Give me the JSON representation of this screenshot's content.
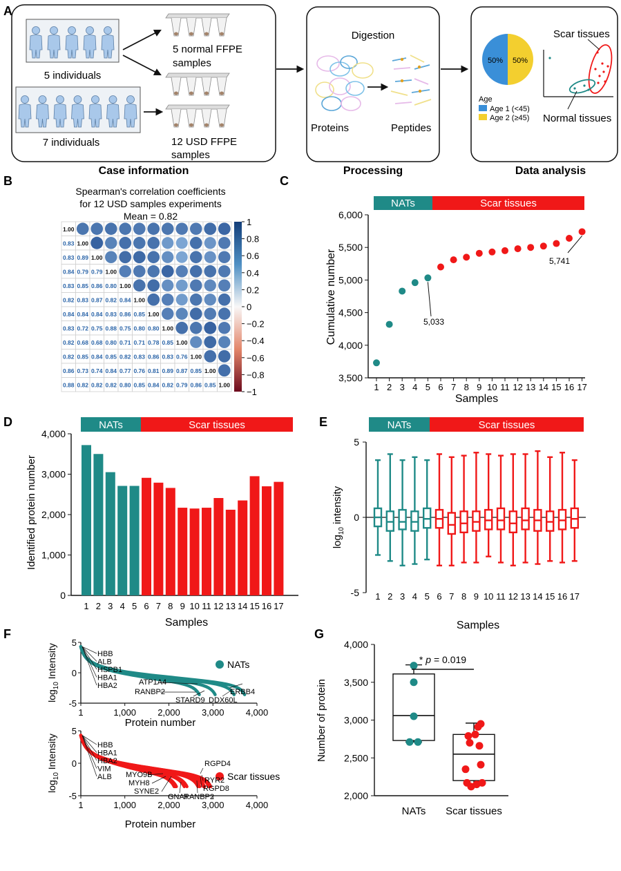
{
  "colors": {
    "teal": "#1f8a87",
    "red": "#f01818",
    "redDark": "#d61414",
    "blue": "#3a8fd8",
    "yellow": "#f3cf2f",
    "person": "#a9c8ea",
    "personStroke": "#5c7fa6"
  },
  "panels": {
    "A": "A",
    "B": "B",
    "C": "C",
    "D": "D",
    "E": "E",
    "F": "F",
    "G": "G"
  },
  "panelA": {
    "group1_label": "5 individuals",
    "group2_label": "7 individuals",
    "group1_count": 5,
    "group2_count": 7,
    "normal_samples_line1": "5 normal FFPE",
    "normal_samples_line2": "samples",
    "usd_samples_line1": "12 USD FFPE",
    "usd_samples_line2": "samples",
    "case_info": "Case information",
    "digestion": "Digestion",
    "proteins": "Proteins",
    "peptides": "Peptides",
    "processing": "Processing",
    "pie_left": "50%",
    "pie_right": "50%",
    "age_title": "Age",
    "age1": "Age 1 (<45)",
    "age2": "Age 2 (≥45)",
    "scar_tissues": "Scar tissues",
    "normal_tissues": "Normal tissues",
    "data_analysis": "Data analysis"
  },
  "panelB": {
    "title1": "Spearman's correlation coefficients",
    "title2": "for 12 USD samples experiments",
    "mean": "Mean = 0.82",
    "colorbar_ticks": [
      "1",
      "0.8",
      "0.6",
      "0.4",
      "0.2",
      "0",
      "−0.2",
      "−0.4",
      "−0.6",
      "−0.8",
      "−1"
    ],
    "matrix": [
      [
        "1.00"
      ],
      [
        "0.83",
        "1.00"
      ],
      [
        "0.83",
        "0.89",
        "1.00"
      ],
      [
        "0.84",
        "0.79",
        "0.79",
        "1.00"
      ],
      [
        "0.83",
        "0.85",
        "0.86",
        "0.80",
        "1.00"
      ],
      [
        "0.82",
        "0.83",
        "0.87",
        "0.82",
        "0.84",
        "1.00"
      ],
      [
        "0.84",
        "0.84",
        "0.84",
        "0.83",
        "0.86",
        "0.85",
        "1.00"
      ],
      [
        "0.83",
        "0.72",
        "0.75",
        "0.88",
        "0.75",
        "0.80",
        "0.80",
        "1.00"
      ],
      [
        "0.82",
        "0.68",
        "0.68",
        "0.80",
        "0.71",
        "0.71",
        "0.78",
        "0.85",
        "1.00"
      ],
      [
        "0.82",
        "0.85",
        "0.84",
        "0.85",
        "0.82",
        "0.83",
        "0.86",
        "0.83",
        "0.76",
        "1.00"
      ],
      [
        "0.86",
        "0.73",
        "0.74",
        "0.84",
        "0.77",
        "0.76",
        "0.81",
        "0.89",
        "0.87",
        "0.85",
        "1.00"
      ],
      [
        "0.88",
        "0.82",
        "0.82",
        "0.82",
        "0.80",
        "0.85",
        "0.84",
        "0.82",
        "0.79",
        "0.86",
        "0.85",
        "1.00"
      ]
    ]
  },
  "chart_data": [
    {
      "panel": "C",
      "type": "scatter",
      "title": "",
      "xlabel": "Samples",
      "ylabel": "Cumulative number",
      "bar_nats": "NATs",
      "bar_scar": "Scar tissues",
      "x": [
        "1",
        "2",
        "3",
        "4",
        "5",
        "6",
        "7",
        "8",
        "9",
        "10",
        "11",
        "12",
        "13",
        "14",
        "15",
        "16",
        "17"
      ],
      "values": [
        3730,
        4320,
        4830,
        4960,
        5033,
        5200,
        5310,
        5350,
        5410,
        5430,
        5450,
        5480,
        5500,
        5520,
        5560,
        5640,
        5741
      ],
      "group": [
        "NATs",
        "NATs",
        "NATs",
        "NATs",
        "NATs",
        "Scar",
        "Scar",
        "Scar",
        "Scar",
        "Scar",
        "Scar",
        "Scar",
        "Scar",
        "Scar",
        "Scar",
        "Scar",
        "Scar"
      ],
      "yticks": [
        "3,500",
        "4,000",
        "4,500",
        "5,000",
        "5,500",
        "6,000"
      ],
      "ylim": [
        3500,
        6000
      ],
      "annotations": [
        "5,033",
        "5,741"
      ]
    },
    {
      "panel": "D",
      "type": "bar",
      "xlabel": "Samples",
      "ylabel": "Identified protein number",
      "bar_nats": "NATs",
      "bar_scar": "Scar tissues",
      "categories": [
        "1",
        "2",
        "3",
        "4",
        "5",
        "6",
        "7",
        "8",
        "9",
        "10",
        "11",
        "12",
        "13",
        "14",
        "15",
        "16",
        "17"
      ],
      "values": [
        3720,
        3500,
        3050,
        2710,
        2710,
        2910,
        2790,
        2660,
        2170,
        2150,
        2170,
        2410,
        2120,
        2350,
        2950,
        2700,
        2810
      ],
      "group": [
        "NATs",
        "NATs",
        "NATs",
        "NATs",
        "NATs",
        "Scar",
        "Scar",
        "Scar",
        "Scar",
        "Scar",
        "Scar",
        "Scar",
        "Scar",
        "Scar",
        "Scar",
        "Scar",
        "Scar"
      ],
      "yticks": [
        "0",
        "1,000",
        "2,000",
        "3,000",
        "4,000"
      ],
      "ylim": [
        0,
        4000
      ]
    },
    {
      "panel": "E",
      "type": "box",
      "xlabel": "Samples",
      "ylabel_main": "log",
      "ylabel_sub": "10",
      "ylabel_tail": " intensity",
      "bar_nats": "NATs",
      "bar_scar": "Scar tissues",
      "categories": [
        "1",
        "2",
        "3",
        "4",
        "5",
        "6",
        "7",
        "8",
        "9",
        "10",
        "11",
        "12",
        "13",
        "14",
        "15",
        "16",
        "17"
      ],
      "whisker_max": [
        3.8,
        4.2,
        3.8,
        4.0,
        3.8,
        4.2,
        4.0,
        4.1,
        4.3,
        4.2,
        4.1,
        4.2,
        4.2,
        4.4,
        4.0,
        4.3,
        3.8
      ],
      "q3": [
        0.6,
        0.4,
        0.5,
        0.4,
        0.6,
        0.5,
        0.3,
        0.4,
        0.4,
        0.5,
        0.6,
        0.4,
        0.6,
        0.5,
        0.4,
        0.5,
        0.6
      ],
      "median": [
        0.0,
        -0.3,
        -0.3,
        -0.3,
        -0.1,
        -0.1,
        -0.5,
        -0.4,
        -0.3,
        -0.2,
        -0.2,
        -0.4,
        -0.2,
        -0.2,
        -0.3,
        -0.2,
        -0.1
      ],
      "q1": [
        -0.6,
        -0.9,
        -0.8,
        -0.9,
        -0.7,
        -0.7,
        -1.1,
        -1.0,
        -0.9,
        -0.8,
        -0.8,
        -1.0,
        -0.8,
        -0.9,
        -0.9,
        -0.8,
        -0.7
      ],
      "whisker_min": [
        -2.5,
        -2.9,
        -3.2,
        -3.1,
        -2.8,
        -3.2,
        -3.2,
        -3.0,
        -3.0,
        -2.6,
        -3.0,
        -3.2,
        -3.0,
        -3.1,
        -2.9,
        -3.0,
        -2.9
      ],
      "group": [
        "NATs",
        "NATs",
        "NATs",
        "NATs",
        "NATs",
        "Scar",
        "Scar",
        "Scar",
        "Scar",
        "Scar",
        "Scar",
        "Scar",
        "Scar",
        "Scar",
        "Scar",
        "Scar",
        "Scar"
      ],
      "yticks": [
        "5",
        "0",
        "-5"
      ],
      "ylim": [
        -5,
        5
      ]
    },
    {
      "panel": "F-top",
      "type": "line",
      "legend": "NATs",
      "xlabel": "Protein number",
      "ylabel_main": "log",
      "ylabel_sub": "10",
      "ylabel_tail": " Intensity",
      "series_end_x": [
        2690,
        3050,
        3480,
        3720
      ],
      "xlim": [
        1,
        4000
      ],
      "ylim": [
        -5,
        5
      ],
      "xticks": [
        "1",
        "1,000",
        "2,000",
        "3,000",
        "4,000"
      ],
      "yticks": [
        "5",
        "0",
        "-5"
      ],
      "top_labels": [
        "HBB",
        "ALB",
        "HSPB1",
        "HBA1",
        "HBA2"
      ],
      "bottom_labels": [
        "ATP1A4",
        "RANBP2",
        "STARD9",
        "DDX60L",
        "ERBB4"
      ]
    },
    {
      "panel": "F-bottom",
      "type": "line",
      "legend": "Scar tissues",
      "xlabel": "Protein number",
      "ylabel_main": "log",
      "ylabel_sub": "10",
      "ylabel_tail": " Intensity",
      "series_end_x": [
        2120,
        2150,
        2170,
        2350,
        2410,
        2660,
        2700,
        2790,
        2810,
        2910,
        2950
      ],
      "xlim": [
        1,
        4000
      ],
      "ylim": [
        -5,
        5
      ],
      "xticks": [
        "1",
        "1,000",
        "2,000",
        "3,000",
        "4,000"
      ],
      "yticks": [
        "5",
        "0",
        "-5"
      ],
      "top_labels": [
        "HBB",
        "HBA1",
        "HBA2",
        "VIM",
        "ALB"
      ],
      "bottom_labels": [
        "MYO9B",
        "MYH8",
        "SYNE2",
        "GNAT",
        "RANBP2",
        "RGPD8",
        "RYR2",
        "RGPD4"
      ]
    },
    {
      "panel": "G",
      "type": "box",
      "xlabel": "",
      "ylabel": "Number of protein",
      "categories": [
        "NATs",
        "Scar tissues"
      ],
      "nats_points": [
        3720,
        3500,
        3050,
        2710,
        2710
      ],
      "scar_points": [
        2910,
        2790,
        2660,
        2170,
        2150,
        2170,
        2410,
        2120,
        2350,
        2950,
        2700,
        2810
      ],
      "nats_box": {
        "min": 2710,
        "q1": 2730,
        "median": 3060,
        "q3": 3610,
        "max": 3730
      },
      "scar_box": {
        "min": 2140,
        "q1": 2200,
        "median": 2550,
        "q3": 2810,
        "max": 2960
      },
      "yticks": [
        "2,000",
        "2,500",
        "3,000",
        "3,500",
        "4,000"
      ],
      "ylim": [
        2000,
        4000
      ],
      "sig_star": "* ",
      "sig_p": "p",
      "sig_value": " = 0.019"
    }
  ]
}
